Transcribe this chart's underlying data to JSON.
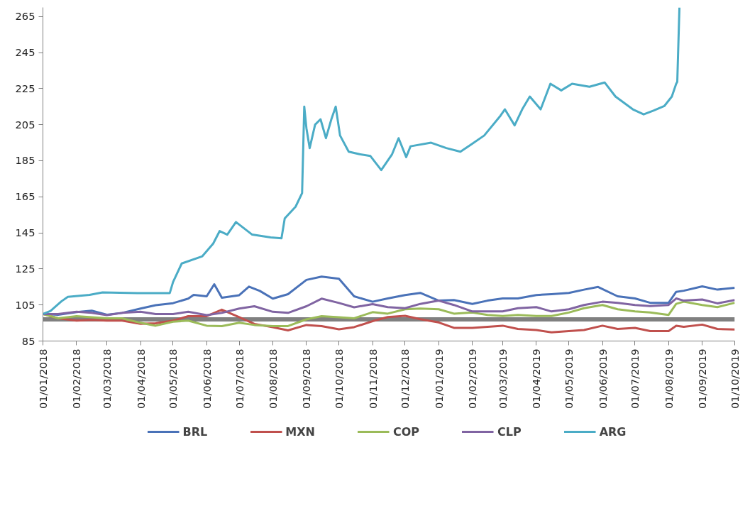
{
  "chart_data": {
    "type": "line",
    "x": [
      "2018-01-01",
      "2018-01-15",
      "2018-02-01",
      "2018-02-15",
      "2018-03-01",
      "2018-03-15",
      "2018-04-01",
      "2018-04-15",
      "2018-05-01",
      "2018-05-15",
      "2018-06-01",
      "2018-06-15",
      "2018-07-01",
      "2018-07-15",
      "2018-08-01",
      "2018-08-15",
      "2018-09-01",
      "2018-09-15",
      "2018-10-01",
      "2018-10-15",
      "2018-11-01",
      "2018-11-15",
      "2018-12-01",
      "2018-12-15",
      "2019-01-01",
      "2019-01-15",
      "2019-02-01",
      "2019-02-15",
      "2019-03-01",
      "2019-03-15",
      "2019-04-01",
      "2019-04-15",
      "2019-05-01",
      "2019-05-15",
      "2019-06-01",
      "2019-06-15",
      "2019-07-01",
      "2019-07-15",
      "2019-08-01",
      "2019-08-08",
      "2019-08-15",
      "2019-09-01",
      "2019-09-15",
      "2019-10-01"
    ],
    "series": [
      {
        "name": "BRL",
        "color": "#4a72b8",
        "x": [
          "2018-01-01",
          "2018-01-15",
          "2018-02-01",
          "2018-02-15",
          "2018-03-01",
          "2018-03-15",
          "2018-04-01",
          "2018-04-15",
          "2018-05-01",
          "2018-05-15",
          "2018-05-20",
          "2018-06-01",
          "2018-06-08",
          "2018-06-15",
          "2018-07-01",
          "2018-07-10",
          "2018-07-20",
          "2018-08-01",
          "2018-08-15",
          "2018-09-01",
          "2018-09-15",
          "2018-10-01",
          "2018-10-15",
          "2018-11-01",
          "2018-11-15",
          "2018-12-01",
          "2018-12-15",
          "2019-01-01",
          "2019-01-15",
          "2019-02-01",
          "2019-02-15",
          "2019-03-01",
          "2019-03-15",
          "2019-04-01",
          "2019-04-15",
          "2019-05-01",
          "2019-05-15",
          "2019-05-28",
          "2019-06-15",
          "2019-07-01",
          "2019-07-15",
          "2019-08-01",
          "2019-08-08",
          "2019-08-15",
          "2019-09-01",
          "2019-09-15",
          "2019-10-01"
        ],
        "values": [
          100,
          99.6,
          101,
          101.8,
          99.6,
          100.6,
          103,
          104.9,
          106,
          108.5,
          110.6,
          109.8,
          116.5,
          109,
          110.4,
          115.2,
          112.8,
          108.5,
          111,
          118.9,
          120.7,
          119.5,
          109.8,
          106.8,
          108.6,
          110.5,
          111.7,
          107.4,
          107.7,
          105.6,
          107.4,
          108.6,
          108.6,
          110.5,
          111,
          111.7,
          113.5,
          115,
          109.8,
          108.6,
          106.2,
          106.2,
          112.3,
          112.9,
          115.3,
          113.5,
          114.5
        ]
      },
      {
        "name": "MXN",
        "color": "#c0504d",
        "values": [
          100,
          97.6,
          96.3,
          96.7,
          96.3,
          96.3,
          94.5,
          94.8,
          96.3,
          98.8,
          98.8,
          102.4,
          98.2,
          94.5,
          92.7,
          90.9,
          93.9,
          93.3,
          91.5,
          92.7,
          96,
          98.3,
          99,
          97.1,
          95.3,
          92.3,
          92.3,
          92.9,
          93.5,
          91.7,
          91.1,
          89.8,
          90.5,
          91.1,
          93.5,
          91.7,
          92.3,
          90.5,
          90.5,
          93.5,
          92.9,
          94.1,
          91.7,
          91.4
        ]
      },
      {
        "name": "COP",
        "color": "#9bbb59",
        "values": [
          100,
          97.6,
          98.8,
          98.2,
          97.6,
          97.6,
          95.1,
          93.5,
          95.7,
          96.3,
          93.5,
          93.3,
          95.1,
          93.9,
          93.3,
          93.3,
          97,
          98.8,
          98.2,
          97.6,
          101,
          100.2,
          102.6,
          103,
          102.6,
          100.2,
          100.8,
          99.5,
          98.9,
          99.5,
          98.9,
          98.9,
          100.8,
          103.2,
          105,
          102.6,
          101.4,
          100.8,
          99.5,
          105.6,
          106.8,
          105,
          103.8,
          106.2
        ]
      },
      {
        "name": "CLP",
        "color": "#8064a2",
        "values": [
          100,
          100,
          101.2,
          100.6,
          99.4,
          100.6,
          101.2,
          100,
          100,
          101.2,
          99.4,
          100.6,
          103,
          104.3,
          101.2,
          100.6,
          104.3,
          108.5,
          106.1,
          103.7,
          105.5,
          103.8,
          103.2,
          105.6,
          107.4,
          105,
          101.4,
          101.4,
          101.4,
          103.2,
          103.8,
          101.4,
          102.6,
          105,
          106.8,
          106.2,
          105,
          104.4,
          105,
          108.6,
          107.4,
          108,
          105.9,
          107.7
        ]
      },
      {
        "name": "ARG",
        "color": "#4bacc6",
        "x": [
          "2018-01-01",
          "2018-01-08",
          "2018-01-18",
          "2018-01-24",
          "2018-02-13",
          "2018-02-25",
          "2018-03-29",
          "2018-04-28",
          "2018-05-01",
          "2018-05-09",
          "2018-05-28",
          "2018-06-07",
          "2018-06-13",
          "2018-06-20",
          "2018-06-28",
          "2018-07-13",
          "2018-07-30",
          "2018-08-09",
          "2018-08-12",
          "2018-08-22",
          "2018-08-28",
          "2018-08-30",
          "2018-09-01",
          "2018-09-04",
          "2018-09-09",
          "2018-09-14",
          "2018-09-19",
          "2018-09-24",
          "2018-09-28",
          "2018-10-02",
          "2018-10-10",
          "2018-10-20",
          "2018-10-30",
          "2018-11-09",
          "2018-11-19",
          "2018-11-25",
          "2018-12-02",
          "2018-12-06",
          "2018-12-25",
          "2019-01-08",
          "2019-01-21",
          "2019-01-31",
          "2019-02-12",
          "2019-02-27",
          "2019-03-03",
          "2019-03-12",
          "2019-03-19",
          "2019-03-26",
          "2019-04-05",
          "2019-04-14",
          "2019-04-24",
          "2019-05-04",
          "2019-05-20",
          "2019-06-03",
          "2019-06-13",
          "2019-06-29",
          "2019-07-09",
          "2019-07-18",
          "2019-07-28",
          "2019-08-04",
          "2019-08-08",
          "2019-08-09",
          "2019-08-11"
        ],
        "values": [
          100,
          101.7,
          107,
          109.5,
          110.6,
          112,
          111.6,
          111.6,
          117.7,
          128,
          132,
          139,
          146,
          144,
          151,
          144,
          142.5,
          142,
          153,
          159.5,
          167,
          215,
          203,
          192,
          205,
          208,
          197.5,
          208,
          215,
          199,
          190,
          188.6,
          187.6,
          179.8,
          188.6,
          197.5,
          187,
          193,
          195,
          192,
          190,
          194,
          199,
          210,
          213.5,
          204.6,
          213.5,
          220.6,
          213.5,
          227.7,
          224,
          227.7,
          226,
          228.4,
          220.6,
          213.5,
          210.7,
          212.8,
          215.3,
          220.6,
          227.7,
          228.8,
          270
        ]
      }
    ],
    "xlim": [
      "2018-01-01",
      "2019-10-01"
    ],
    "xticks": [
      {
        "value": "2018-01-01",
        "label": "01/01/2018"
      },
      {
        "value": "2018-02-01",
        "label": "01/02/2018"
      },
      {
        "value": "2018-03-01",
        "label": "01/03/2018"
      },
      {
        "value": "2018-04-01",
        "label": "01/04/2018"
      },
      {
        "value": "2018-05-01",
        "label": "01/05/2018"
      },
      {
        "value": "2018-06-01",
        "label": "01/06/2018"
      },
      {
        "value": "2018-07-01",
        "label": "01/07/2018"
      },
      {
        "value": "2018-08-01",
        "label": "01/08/2018"
      },
      {
        "value": "2018-09-01",
        "label": "01/09/2018"
      },
      {
        "value": "2018-10-01",
        "label": "01/10/2018"
      },
      {
        "value": "2018-11-01",
        "label": "01/11/2018"
      },
      {
        "value": "2018-12-01",
        "label": "01/12/2018"
      },
      {
        "value": "2019-01-01",
        "label": "01/01/2019"
      },
      {
        "value": "2019-02-01",
        "label": "01/02/2019"
      },
      {
        "value": "2019-03-01",
        "label": "01/03/2019"
      },
      {
        "value": "2019-04-01",
        "label": "01/04/2019"
      },
      {
        "value": "2019-05-01",
        "label": "01/05/2019"
      },
      {
        "value": "2019-06-01",
        "label": "01/06/2019"
      },
      {
        "value": "2019-07-01",
        "label": "01/07/2019"
      },
      {
        "value": "2019-08-01",
        "label": "01/08/2019"
      },
      {
        "value": "2019-09-01",
        "label": "01/09/2019"
      },
      {
        "value": "2019-10-01",
        "label": "01/10/2019"
      }
    ],
    "ylim": [
      85,
      270
    ],
    "yticks": [
      85,
      105,
      125,
      145,
      165,
      185,
      205,
      225,
      245,
      265
    ],
    "ref_lines": [
      {
        "axis": "y",
        "value": 97,
        "label": null,
        "color": "#808080"
      }
    ],
    "grid": false,
    "legend": "bottom",
    "marker": "none",
    "line_style": "solid"
  }
}
